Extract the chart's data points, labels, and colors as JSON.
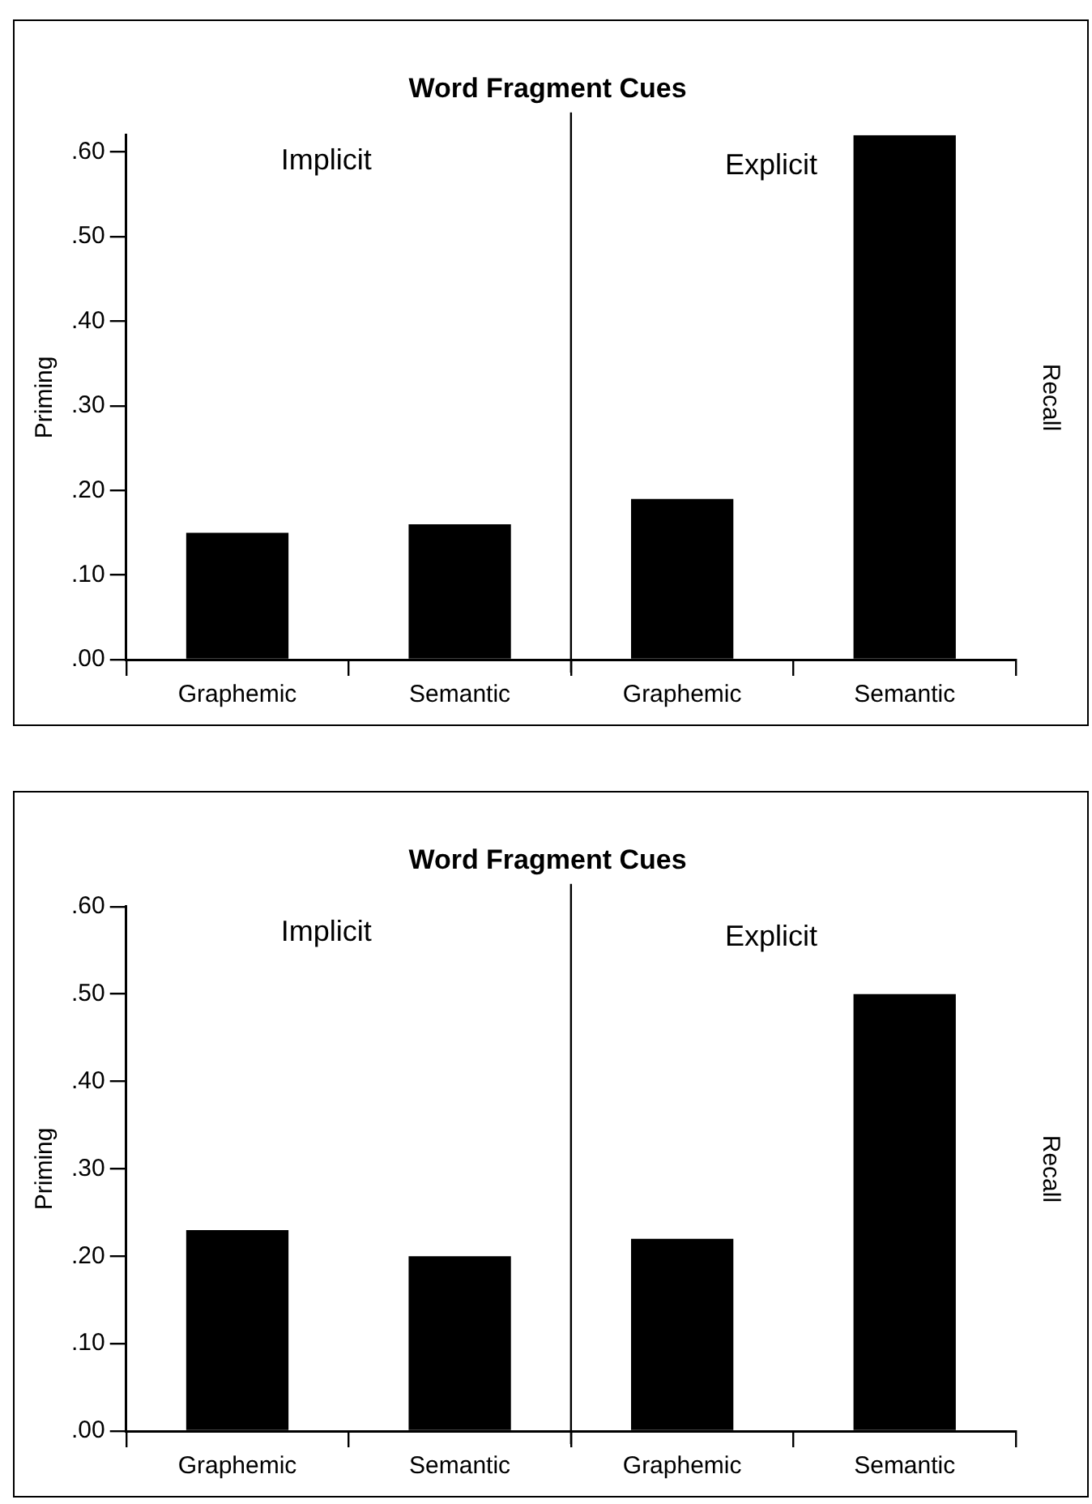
{
  "chart_data": [
    {
      "type": "bar",
      "title": "Word Fragment Cues",
      "ylabel": "Priming",
      "y2label": "Recall",
      "categories": [
        "Graphemic",
        "Semantic",
        "Graphemic",
        "Semantic"
      ],
      "series": [
        {
          "color": "#000000",
          "values": [
            0.15,
            0.16,
            0.19,
            0.62
          ]
        }
      ],
      "ylim": [
        0,
        0.62
      ],
      "yticks": [
        {
          "value": 0,
          "label": ".00"
        },
        {
          "value": 0.1,
          "label": ".10"
        },
        {
          "value": 0.2,
          "label": ".20"
        },
        {
          "value": 0.3,
          "label": ".30"
        },
        {
          "value": 0.4,
          "label": ".40"
        },
        {
          "value": 0.5,
          "label": ".50"
        },
        {
          "value": 0.6,
          "label": ".60"
        }
      ],
      "annotations": [
        "Implicit",
        "Explicit"
      ],
      "grid": false,
      "legend": false
    },
    {
      "type": "bar",
      "title": "Word Fragment Cues",
      "ylabel": "Priming",
      "y2label": "Recall",
      "categories": [
        "Graphemic",
        "Semantic",
        "Graphemic",
        "Semantic"
      ],
      "series": [
        {
          "color": "#000000",
          "values": [
            0.23,
            0.2,
            0.22,
            0.5
          ]
        }
      ],
      "ylim": [
        0,
        0.6
      ],
      "yticks": [
        {
          "value": 0,
          "label": ".00"
        },
        {
          "value": 0.1,
          "label": ".10"
        },
        {
          "value": 0.2,
          "label": ".20"
        },
        {
          "value": 0.3,
          "label": ".30"
        },
        {
          "value": 0.4,
          "label": ".40"
        },
        {
          "value": 0.5,
          "label": ".50"
        },
        {
          "value": 0.6,
          "label": ".60"
        }
      ],
      "annotations": [
        "Implicit",
        "Explicit"
      ],
      "grid": false,
      "legend": false
    }
  ]
}
